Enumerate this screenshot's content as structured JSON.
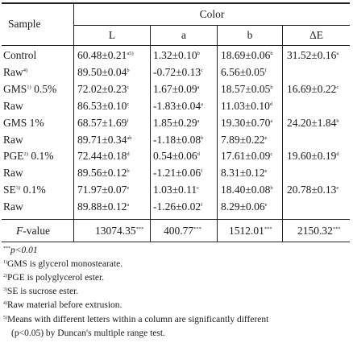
{
  "header": {
    "sample": "Sample",
    "color": "Color",
    "cols": [
      "L",
      "a",
      "b",
      "ΔE"
    ]
  },
  "rows": [
    {
      "sample": "Control",
      "sample_sup": "",
      "sample_suffix": "",
      "L": "60.48±0.21",
      "L_sup": "a5)",
      "a": "1.32±0.10",
      "a_sup": "b",
      "b": "18.69±0.06",
      "b_sup": "b",
      "dE": "31.52±0.16",
      "dE_sup": "a"
    },
    {
      "sample": "Raw",
      "sample_sup": "4)",
      "sample_suffix": "",
      "L": "89.50±0.04",
      "L_sup": "b",
      "a": "-0.72±0.13",
      "a_sup": "c",
      "b": "6.56±0.05",
      "b_sup": "f",
      "dE": "",
      "dE_sup": ""
    },
    {
      "sample": "GMS",
      "sample_sup": "1)",
      "sample_suffix": " 0.5%",
      "L": "72.02±0.23",
      "L_sup": "c",
      "a": "1.67±0.09",
      "a_sup": "a",
      "b": "18.57±0.05",
      "b_sup": "b",
      "dE": "16.69±0.22",
      "dE_sup": "c"
    },
    {
      "sample": "Raw",
      "sample_sup": "",
      "sample_suffix": "",
      "L": "86.53±0.10",
      "L_sup": "c",
      "a": "-1.83±0.04",
      "a_sup": "a",
      "b": "11.03±0.10",
      "b_sup": "d",
      "dE": "",
      "dE_sup": ""
    },
    {
      "sample": "GMS 1%",
      "sample_sup": "",
      "sample_suffix": "",
      "L": "68.57±1.69",
      "L_sup": "f",
      "a": "1.85±0.29",
      "a_sup": "a",
      "b": "19.30±0.70",
      "b_sup": "a",
      "dE": "24.20±1.84",
      "dE_sup": "b"
    },
    {
      "sample": "Raw",
      "sample_sup": "",
      "sample_suffix": "",
      "L": "89.71±0.34",
      "L_sup": "ab",
      "a": "-1.18±0.08",
      "a_sup": "b",
      "b": "7.89±0.22",
      "b_sup": "e",
      "dE": "",
      "dE_sup": ""
    },
    {
      "sample": "PGE",
      "sample_sup": "2)",
      "sample_suffix": " 0.1%",
      "L": "72.44±0.18",
      "L_sup": "d",
      "a": "0.54±0.06",
      "a_sup": "d",
      "b": "17.61±0.09",
      "b_sup": "c",
      "dE": "19.60±0.19",
      "dE_sup": "d"
    },
    {
      "sample": "Raw",
      "sample_sup": "",
      "sample_suffix": "",
      "L": "89.56±0.12",
      "L_sup": "b",
      "a": "-1.21±0.06",
      "a_sup": "f",
      "b": "8.31±0.12",
      "b_sup": "e",
      "dE": "",
      "dE_sup": ""
    },
    {
      "sample": "SE",
      "sample_sup": "3)",
      "sample_suffix": " 0.1%",
      "L": "71.97±0.07",
      "L_sup": "e",
      "a": "1.03±0.11",
      "a_sup": "c",
      "b": "18.40±0.08",
      "b_sup": "b",
      "dE": "20.78±0.13",
      "dE_sup": "e"
    },
    {
      "sample": "Raw",
      "sample_sup": "",
      "sample_suffix": "",
      "L": "89.88±0.12",
      "L_sup": "a",
      "a": "-1.26±0.02",
      "a_sup": "f",
      "b": "8.29±0.06",
      "b_sup": "e",
      "dE": "",
      "dE_sup": ""
    }
  ],
  "fvalue": {
    "label_italic": "F",
    "label_rest": "-value",
    "L": "13074.35",
    "a": "400.77",
    "b": "1512.01",
    "dE": "2150.32",
    "sup": "***"
  },
  "notes": [
    {
      "sup": "***",
      "text": "p<0.01",
      "italic": true
    },
    {
      "sup": "1)",
      "text": "GMS is glycerol monostearate."
    },
    {
      "sup": "2)",
      "text": "PGE is polyglycerol ester."
    },
    {
      "sup": "3)",
      "text": "SE is sucrose ester."
    },
    {
      "sup": "4)",
      "text": "Raw material before extrusion."
    },
    {
      "sup": "5)",
      "text": "Means with different letters within a column are significantly different"
    },
    {
      "sup": "",
      "text": "(p<0.05) by Duncan's multiple range test."
    }
  ]
}
